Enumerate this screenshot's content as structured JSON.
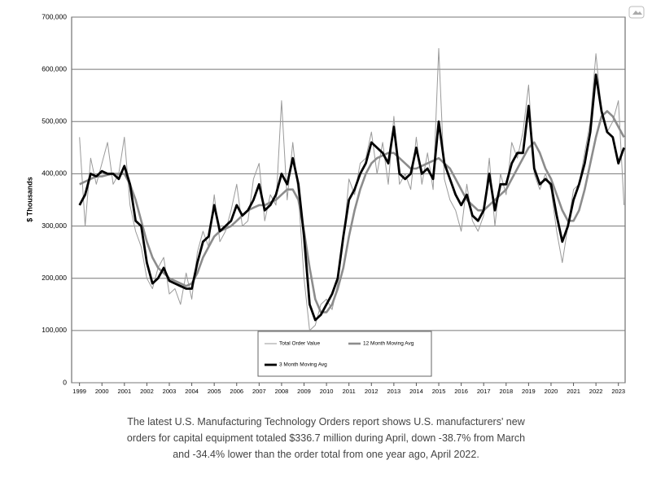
{
  "chart_data": {
    "type": "line",
    "ylabel": "$ Thousands",
    "x": [
      1999,
      1999.25,
      1999.5,
      1999.75,
      2000,
      2000.25,
      2000.5,
      2000.75,
      2001,
      2001.25,
      2001.5,
      2001.75,
      2002,
      2002.25,
      2002.5,
      2002.75,
      2003,
      2003.25,
      2003.5,
      2003.75,
      2004,
      2004.25,
      2004.5,
      2004.75,
      2005,
      2005.25,
      2005.5,
      2005.75,
      2006,
      2006.25,
      2006.5,
      2006.75,
      2007,
      2007.25,
      2007.5,
      2007.75,
      2008,
      2008.25,
      2008.5,
      2008.75,
      2009,
      2009.25,
      2009.5,
      2009.75,
      2010,
      2010.25,
      2010.5,
      2010.75,
      2011,
      2011.25,
      2011.5,
      2011.75,
      2012,
      2012.25,
      2012.5,
      2012.75,
      2013,
      2013.25,
      2013.5,
      2013.75,
      2014,
      2014.25,
      2014.5,
      2014.75,
      2015,
      2015.25,
      2015.5,
      2015.75,
      2016,
      2016.25,
      2016.5,
      2016.75,
      2017,
      2017.25,
      2017.5,
      2017.75,
      2018,
      2018.25,
      2018.5,
      2018.75,
      2019,
      2019.25,
      2019.5,
      2019.75,
      2020,
      2020.25,
      2020.5,
      2020.75,
      2021,
      2021.25,
      2021.5,
      2021.75,
      2022,
      2022.25,
      2022.5,
      2022.75,
      2023,
      2023.25
    ],
    "series": [
      {
        "name": "Total Order Value",
        "color": "#9a9a9a",
        "values": [
          470000,
          300000,
          430000,
          380000,
          420000,
          460000,
          380000,
          400000,
          470000,
          340000,
          290000,
          260000,
          200000,
          180000,
          220000,
          240000,
          170000,
          180000,
          150000,
          210000,
          160000,
          250000,
          290000,
          260000,
          360000,
          270000,
          290000,
          330000,
          380000,
          300000,
          310000,
          390000,
          420000,
          310000,
          360000,
          340000,
          540000,
          350000,
          460000,
          360000,
          200000,
          100000,
          110000,
          150000,
          160000,
          140000,
          190000,
          270000,
          390000,
          360000,
          420000,
          430000,
          480000,
          400000,
          460000,
          380000,
          510000,
          380000,
          400000,
          370000,
          470000,
          380000,
          440000,
          370000,
          640000,
          390000,
          350000,
          330000,
          290000,
          380000,
          310000,
          290000,
          320000,
          430000,
          300000,
          400000,
          360000,
          460000,
          430000,
          480000,
          570000,
          400000,
          370000,
          400000,
          370000,
          290000,
          230000,
          300000,
          370000,
          380000,
          440000,
          500000,
          630000,
          520000,
          480000,
          500000,
          540000,
          340000
        ]
      },
      {
        "name": "12 Month Moving Avg",
        "color": "#8c8c8c",
        "values": [
          380000,
          385000,
          390000,
          395000,
          395000,
          398000,
          400000,
          400000,
          400000,
          380000,
          350000,
          310000,
          270000,
          240000,
          220000,
          210000,
          200000,
          195000,
          190000,
          185000,
          190000,
          210000,
          240000,
          260000,
          280000,
          290000,
          295000,
          300000,
          310000,
          320000,
          330000,
          335000,
          340000,
          340000,
          345000,
          350000,
          360000,
          370000,
          370000,
          350000,
          290000,
          220000,
          160000,
          135000,
          135000,
          150000,
          180000,
          220000,
          280000,
          330000,
          370000,
          400000,
          420000,
          430000,
          435000,
          440000,
          440000,
          430000,
          420000,
          410000,
          410000,
          415000,
          420000,
          425000,
          430000,
          420000,
          410000,
          390000,
          370000,
          350000,
          340000,
          330000,
          330000,
          340000,
          350000,
          360000,
          370000,
          390000,
          410000,
          430000,
          450000,
          460000,
          440000,
          410000,
          390000,
          360000,
          330000,
          310000,
          310000,
          330000,
          370000,
          420000,
          470000,
          510000,
          520000,
          510000,
          490000,
          470000
        ]
      },
      {
        "name": "3 Month Moving Avg",
        "color": "#000000",
        "values": [
          340000,
          360000,
          400000,
          395000,
          405000,
          400000,
          400000,
          390000,
          415000,
          380000,
          310000,
          300000,
          230000,
          190000,
          200000,
          220000,
          195000,
          190000,
          185000,
          180000,
          180000,
          230000,
          270000,
          280000,
          340000,
          290000,
          300000,
          310000,
          340000,
          320000,
          330000,
          350000,
          380000,
          330000,
          340000,
          360000,
          400000,
          380000,
          430000,
          380000,
          280000,
          150000,
          120000,
          130000,
          150000,
          170000,
          200000,
          280000,
          350000,
          370000,
          400000,
          420000,
          460000,
          450000,
          440000,
          420000,
          490000,
          400000,
          390000,
          400000,
          450000,
          400000,
          410000,
          390000,
          500000,
          420000,
          390000,
          360000,
          340000,
          360000,
          320000,
          310000,
          330000,
          400000,
          330000,
          380000,
          380000,
          420000,
          440000,
          440000,
          530000,
          410000,
          380000,
          390000,
          380000,
          320000,
          270000,
          300000,
          350000,
          380000,
          420000,
          480000,
          590000,
          520000,
          480000,
          470000,
          420000,
          450000
        ]
      }
    ],
    "xlim": [
      1998.65,
      2023.3
    ],
    "xticks": [
      1999,
      2000,
      2001,
      2002,
      2003,
      2004,
      2005,
      2006,
      2007,
      2008,
      2009,
      2010,
      2011,
      2012,
      2013,
      2014,
      2015,
      2016,
      2017,
      2018,
      2019,
      2020,
      2021,
      2022,
      2023
    ],
    "ylim": [
      0,
      700000
    ],
    "yticks": [
      0,
      {
        "value": 100000,
        "label": "100,000"
      },
      {
        "value": 200000,
        "label": "200,000"
      },
      {
        "value": 300000,
        "label": "300,000"
      },
      {
        "value": 400000,
        "label": "400,000"
      },
      {
        "value": 500000,
        "label": "500,000"
      },
      {
        "value": 600000,
        "label": "600,000"
      },
      {
        "value": 700000,
        "label": "700,000"
      }
    ],
    "grid": true
  },
  "caption": [
    "The latest U.S. Manufacturing Technology Orders report shows U.S. manufacturers' new",
    "orders for capital equipment totaled $336.7 million during April, down -38.7% from March",
    "and -34.4% lower than the order total from one year ago, April 2022."
  ]
}
